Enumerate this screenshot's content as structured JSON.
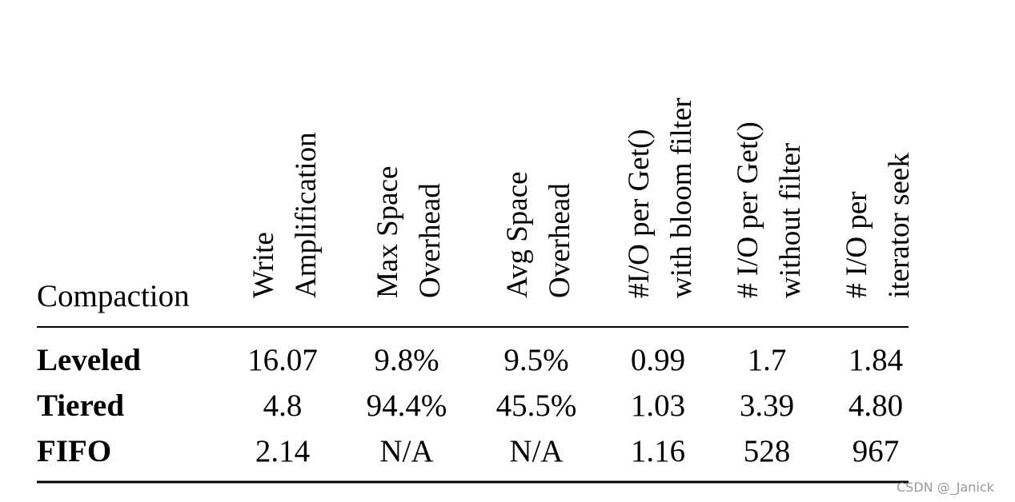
{
  "table": {
    "corner": "Compaction",
    "columns": [
      [
        "Write",
        "Amplification"
      ],
      [
        "Max Space",
        "Overhead"
      ],
      [
        "Avg Space",
        "Overhead"
      ],
      [
        "#I/O per Get()",
        "with bloom filter"
      ],
      [
        "# I/O per Get()",
        "without filter"
      ],
      [
        "# I/O per",
        "iterator seek"
      ]
    ],
    "rows": [
      {
        "label": "Leveled",
        "cells": [
          "16.07",
          "9.8%",
          "9.5%",
          "0.99",
          "1.7",
          "1.84"
        ]
      },
      {
        "label": "Tiered",
        "cells": [
          "4.8",
          "94.4%",
          "45.5%",
          "1.03",
          "3.39",
          "4.80"
        ]
      },
      {
        "label": "FIFO",
        "cells": [
          "2.14",
          "N/A",
          "N/A",
          "1.16",
          "528",
          "967"
        ]
      }
    ]
  },
  "watermark": "CSDN @_Janick"
}
